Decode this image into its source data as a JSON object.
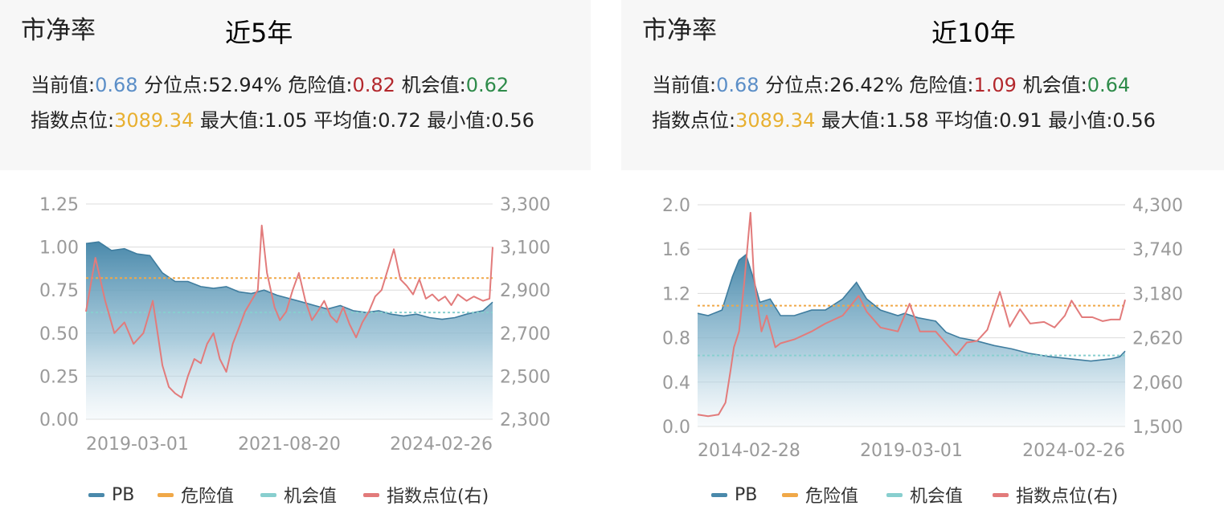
{
  "panels": [
    {
      "title": "市净率",
      "period": "近5年",
      "stats": {
        "current_label": "当前值:",
        "current": "0.68",
        "percentile_label": "分位点:",
        "percentile": "52.94%",
        "danger_label": "危险值:",
        "danger": "0.82",
        "opportunity_label": "机会值:",
        "opportunity": "0.62",
        "index_label": "指数点位:",
        "index": "3089.34",
        "max_label": "最大值:",
        "max": "1.05",
        "avg_label": "平均值:",
        "avg": "0.72",
        "min_label": "最小值:",
        "min": "0.56"
      }
    },
    {
      "title": "市净率",
      "period": "近10年",
      "stats": {
        "current_label": "当前值:",
        "current": "0.68",
        "percentile_label": "分位点:",
        "percentile": "26.42%",
        "danger_label": "危险值:",
        "danger": "1.09",
        "opportunity_label": "机会值:",
        "opportunity": "0.64",
        "index_label": "指数点位:",
        "index": "3089.34",
        "max_label": "最大值:",
        "max": "1.58",
        "avg_label": "平均值:",
        "avg": "0.91",
        "min_label": "最小值:",
        "min": "0.56"
      }
    }
  ],
  "legend": [
    {
      "label": "PB",
      "color": "#4a89ab"
    },
    {
      "label": "危险值",
      "color": "#f0a848"
    },
    {
      "label": "机会值",
      "color": "#88cfcf"
    },
    {
      "label": "指数点位(右)",
      "color": "#e27b7b"
    }
  ],
  "chart_data": [
    {
      "type": "line",
      "x_range": [
        "2019-03-01",
        "2024-06-30"
      ],
      "x_tick_labels": [
        "2019-03-01",
        "2021-08-20",
        "2024-02-26"
      ],
      "y_left": {
        "ticks": [
          "0.00",
          "0.25",
          "0.50",
          "0.75",
          "1.00",
          "1.25"
        ],
        "min": 0,
        "max": 1.25
      },
      "y_right": {
        "ticks": [
          "2,300",
          "2,500",
          "2,700",
          "2,900",
          "3,100",
          "3,300"
        ],
        "min": 2300,
        "max": 3300
      },
      "grid": true,
      "legend_position": "bottom",
      "danger_value": 0.82,
      "opportunity_value": 0.62,
      "series": [
        {
          "name": "PB",
          "axis": "left",
          "style": "area",
          "points": [
            [
              "2019-03-01",
              1.02
            ],
            [
              "2019-05-01",
              1.03
            ],
            [
              "2019-07-01",
              0.98
            ],
            [
              "2019-09-01",
              0.99
            ],
            [
              "2019-11-01",
              0.96
            ],
            [
              "2020-01-01",
              0.95
            ],
            [
              "2020-03-01",
              0.85
            ],
            [
              "2020-05-01",
              0.8
            ],
            [
              "2020-07-01",
              0.8
            ],
            [
              "2020-09-01",
              0.77
            ],
            [
              "2020-11-01",
              0.76
            ],
            [
              "2021-01-01",
              0.77
            ],
            [
              "2021-03-01",
              0.74
            ],
            [
              "2021-05-01",
              0.73
            ],
            [
              "2021-07-01",
              0.75
            ],
            [
              "2021-09-01",
              0.72
            ],
            [
              "2021-11-01",
              0.7
            ],
            [
              "2022-01-01",
              0.68
            ],
            [
              "2022-03-01",
              0.66
            ],
            [
              "2022-05-01",
              0.64
            ],
            [
              "2022-07-01",
              0.66
            ],
            [
              "2022-09-01",
              0.63
            ],
            [
              "2022-11-01",
              0.62
            ],
            [
              "2023-01-01",
              0.63
            ],
            [
              "2023-03-01",
              0.61
            ],
            [
              "2023-05-01",
              0.6
            ],
            [
              "2023-07-01",
              0.61
            ],
            [
              "2023-09-01",
              0.59
            ],
            [
              "2023-11-01",
              0.58
            ],
            [
              "2024-01-01",
              0.59
            ],
            [
              "2024-02-26",
              0.61
            ],
            [
              "2024-04-01",
              0.62
            ],
            [
              "2024-05-15",
              0.63
            ],
            [
              "2024-06-30",
              0.68
            ]
          ]
        },
        {
          "name": "指数点位(右)",
          "axis": "right",
          "style": "line",
          "points": [
            [
              "2019-03-01",
              2800
            ],
            [
              "2019-04-15",
              3050
            ],
            [
              "2019-06-01",
              2850
            ],
            [
              "2019-07-15",
              2700
            ],
            [
              "2019-09-01",
              2750
            ],
            [
              "2019-10-15",
              2650
            ],
            [
              "2019-12-01",
              2700
            ],
            [
              "2020-01-15",
              2850
            ],
            [
              "2020-03-01",
              2550
            ],
            [
              "2020-04-01",
              2450
            ],
            [
              "2020-05-01",
              2420
            ],
            [
              "2020-06-01",
              2400
            ],
            [
              "2020-07-01",
              2500
            ],
            [
              "2020-08-01",
              2580
            ],
            [
              "2020-09-01",
              2560
            ],
            [
              "2020-10-01",
              2650
            ],
            [
              "2020-11-01",
              2700
            ],
            [
              "2020-12-01",
              2580
            ],
            [
              "2021-01-01",
              2520
            ],
            [
              "2021-02-01",
              2650
            ],
            [
              "2021-03-01",
              2720
            ],
            [
              "2021-04-01",
              2800
            ],
            [
              "2021-05-01",
              2850
            ],
            [
              "2021-06-01",
              2900
            ],
            [
              "2021-06-20",
              3200
            ],
            [
              "2021-07-15",
              2980
            ],
            [
              "2021-08-20",
              2820
            ],
            [
              "2021-09-15",
              2760
            ],
            [
              "2021-10-15",
              2800
            ],
            [
              "2021-11-15",
              2900
            ],
            [
              "2021-12-15",
              2980
            ],
            [
              "2022-01-15",
              2850
            ],
            [
              "2022-02-15",
              2760
            ],
            [
              "2022-03-15",
              2800
            ],
            [
              "2022-04-15",
              2850
            ],
            [
              "2022-05-15",
              2780
            ],
            [
              "2022-06-15",
              2750
            ],
            [
              "2022-07-15",
              2820
            ],
            [
              "2022-08-15",
              2740
            ],
            [
              "2022-09-15",
              2680
            ],
            [
              "2022-10-15",
              2750
            ],
            [
              "2022-11-15",
              2800
            ],
            [
              "2022-12-15",
              2870
            ],
            [
              "2023-01-15",
              2900
            ],
            [
              "2023-02-15",
              3000
            ],
            [
              "2023-03-15",
              3090
            ],
            [
              "2023-04-15",
              2950
            ],
            [
              "2023-05-15",
              2920
            ],
            [
              "2023-06-15",
              2880
            ],
            [
              "2023-07-15",
              2950
            ],
            [
              "2023-08-15",
              2860
            ],
            [
              "2023-09-15",
              2880
            ],
            [
              "2023-10-15",
              2850
            ],
            [
              "2023-11-15",
              2870
            ],
            [
              "2023-12-15",
              2830
            ],
            [
              "2024-01-15",
              2880
            ],
            [
              "2024-02-26",
              2850
            ],
            [
              "2024-04-01",
              2870
            ],
            [
              "2024-05-15",
              2850
            ],
            [
              "2024-06-15",
              2860
            ],
            [
              "2024-06-30",
              3100
            ]
          ]
        }
      ]
    },
    {
      "type": "line",
      "x_range": [
        "2014-02-28",
        "2024-06-30"
      ],
      "x_tick_labels": [
        "2014-02-28",
        "2019-03-01",
        "2024-02-26"
      ],
      "y_left": {
        "ticks": [
          "0.0",
          "0.4",
          "0.8",
          "1.2",
          "1.6",
          "2.0"
        ],
        "min": 0,
        "max": 2.0
      },
      "y_right": {
        "ticks": [
          "1,500",
          "2,060",
          "2,620",
          "3,180",
          "3,740",
          "4,300"
        ],
        "min": 1500,
        "max": 4300
      },
      "grid": true,
      "legend_position": "bottom",
      "danger_value": 1.09,
      "opportunity_value": 0.64,
      "series": [
        {
          "name": "PB",
          "axis": "left",
          "style": "area",
          "points": [
            [
              "2014-02-28",
              1.02
            ],
            [
              "2014-06-01",
              1.0
            ],
            [
              "2014-10-01",
              1.05
            ],
            [
              "2015-01-01",
              1.35
            ],
            [
              "2015-03-01",
              1.5
            ],
            [
              "2015-05-01",
              1.55
            ],
            [
              "2015-07-01",
              1.35
            ],
            [
              "2015-09-01",
              1.12
            ],
            [
              "2015-12-01",
              1.15
            ],
            [
              "2016-03-01",
              1.0
            ],
            [
              "2016-07-01",
              1.0
            ],
            [
              "2016-12-01",
              1.05
            ],
            [
              "2017-04-01",
              1.05
            ],
            [
              "2017-09-01",
              1.15
            ],
            [
              "2018-01-01",
              1.3
            ],
            [
              "2018-04-01",
              1.15
            ],
            [
              "2018-08-01",
              1.05
            ],
            [
              "2019-01-01",
              1.0
            ],
            [
              "2019-03-01",
              1.02
            ],
            [
              "2019-07-01",
              0.98
            ],
            [
              "2019-12-01",
              0.95
            ],
            [
              "2020-03-01",
              0.85
            ],
            [
              "2020-07-01",
              0.8
            ],
            [
              "2020-12-01",
              0.77
            ],
            [
              "2021-05-01",
              0.73
            ],
            [
              "2021-10-01",
              0.7
            ],
            [
              "2022-03-01",
              0.66
            ],
            [
              "2022-09-01",
              0.63
            ],
            [
              "2023-03-01",
              0.61
            ],
            [
              "2023-09-01",
              0.59
            ],
            [
              "2024-02-26",
              0.61
            ],
            [
              "2024-05-15",
              0.63
            ],
            [
              "2024-06-30",
              0.68
            ]
          ]
        },
        {
          "name": "指数点位(右)",
          "axis": "right",
          "style": "line",
          "points": [
            [
              "2014-02-28",
              1650
            ],
            [
              "2014-06-01",
              1630
            ],
            [
              "2014-09-01",
              1650
            ],
            [
              "2014-11-01",
              1800
            ],
            [
              "2014-12-15",
              2200
            ],
            [
              "2015-01-15",
              2500
            ],
            [
              "2015-03-01",
              2700
            ],
            [
              "2015-04-15",
              3300
            ],
            [
              "2015-06-10",
              4200
            ],
            [
              "2015-07-10",
              3400
            ],
            [
              "2015-08-15",
              3000
            ],
            [
              "2015-09-15",
              2700
            ],
            [
              "2015-11-01",
              2900
            ],
            [
              "2016-01-15",
              2500
            ],
            [
              "2016-03-01",
              2550
            ],
            [
              "2016-07-01",
              2600
            ],
            [
              "2016-12-01",
              2700
            ],
            [
              "2017-04-01",
              2800
            ],
            [
              "2017-09-01",
              2900
            ],
            [
              "2018-01-20",
              3150
            ],
            [
              "2018-04-01",
              2950
            ],
            [
              "2018-08-01",
              2750
            ],
            [
              "2019-01-01",
              2700
            ],
            [
              "2019-04-15",
              3050
            ],
            [
              "2019-07-15",
              2700
            ],
            [
              "2019-12-01",
              2700
            ],
            [
              "2020-03-01",
              2550
            ],
            [
              "2020-06-01",
              2400
            ],
            [
              "2020-09-01",
              2560
            ],
            [
              "2020-12-01",
              2580
            ],
            [
              "2021-03-01",
              2720
            ],
            [
              "2021-06-20",
              3200
            ],
            [
              "2021-09-15",
              2760
            ],
            [
              "2021-12-15",
              2980
            ],
            [
              "2022-03-15",
              2800
            ],
            [
              "2022-07-15",
              2820
            ],
            [
              "2022-10-15",
              2750
            ],
            [
              "2023-01-15",
              2900
            ],
            [
              "2023-03-15",
              3090
            ],
            [
              "2023-06-15",
              2880
            ],
            [
              "2023-09-15",
              2880
            ],
            [
              "2023-12-15",
              2830
            ],
            [
              "2024-02-26",
              2850
            ],
            [
              "2024-05-15",
              2850
            ],
            [
              "2024-06-30",
              3100
            ]
          ]
        }
      ]
    }
  ]
}
